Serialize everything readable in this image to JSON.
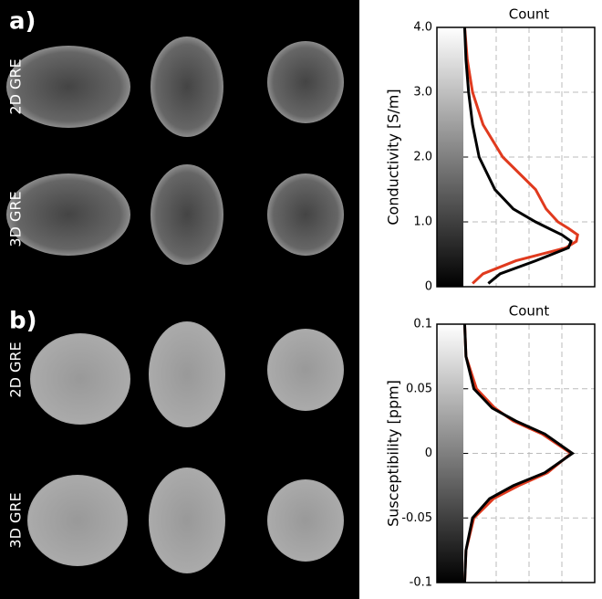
{
  "panels": [
    {
      "label": "a)",
      "rows": [
        "2D GRE",
        "3D GRE"
      ]
    },
    {
      "label": "b)",
      "rows": [
        "2D GRE",
        "3D GRE"
      ]
    }
  ],
  "chart_data": [
    {
      "type": "line",
      "orientation": "horizontal",
      "xlabel": "Count",
      "ylabel": "Conductivity [S/m]",
      "y": [
        0.05,
        0.2,
        0.4,
        0.6,
        0.7,
        0.8,
        0.9,
        1.0,
        1.2,
        1.5,
        2.0,
        2.5,
        3.0,
        3.5,
        4.0
      ],
      "series": [
        {
          "color": "#e03a1e",
          "values": [
            0.07,
            0.15,
            0.4,
            0.78,
            0.86,
            0.87,
            0.8,
            0.72,
            0.63,
            0.55,
            0.3,
            0.15,
            0.07,
            0.03,
            0.01
          ]
        },
        {
          "color": "#000000",
          "values": [
            0.19,
            0.28,
            0.55,
            0.8,
            0.82,
            0.75,
            0.65,
            0.55,
            0.38,
            0.24,
            0.12,
            0.07,
            0.04,
            0.02,
            0.01
          ]
        }
      ],
      "xlim": [
        0,
        1
      ],
      "ylim": [
        0,
        4
      ],
      "yticks": [
        0,
        {
          "value": 1,
          "label": "1.0"
        },
        {
          "value": 2,
          "label": "2.0"
        },
        {
          "value": 3,
          "label": "3.0"
        },
        {
          "value": 4,
          "label": "4.0"
        }
      ],
      "grid": true
    },
    {
      "type": "line",
      "orientation": "horizontal",
      "xlabel": "Count",
      "ylabel": "Susceptibility [ppm]",
      "y": [
        -0.1,
        -0.075,
        -0.05,
        -0.035,
        -0.025,
        -0.015,
        0,
        0.015,
        0.025,
        0.035,
        0.05,
        0.075,
        0.1
      ],
      "series": [
        {
          "color": "#e03a1e",
          "values": [
            0.01,
            0.02,
            0.08,
            0.23,
            0.42,
            0.64,
            0.82,
            0.6,
            0.38,
            0.24,
            0.1,
            0.02,
            0.01
          ]
        },
        {
          "color": "#000000",
          "values": [
            0.01,
            0.02,
            0.07,
            0.2,
            0.38,
            0.62,
            0.83,
            0.62,
            0.4,
            0.22,
            0.08,
            0.02,
            0.01
          ]
        }
      ],
      "xlim": [
        0,
        1
      ],
      "ylim": [
        -0.1,
        0.1
      ],
      "yticks": [
        -0.1,
        -0.05,
        0,
        0.05,
        0.1
      ],
      "grid": true
    }
  ]
}
